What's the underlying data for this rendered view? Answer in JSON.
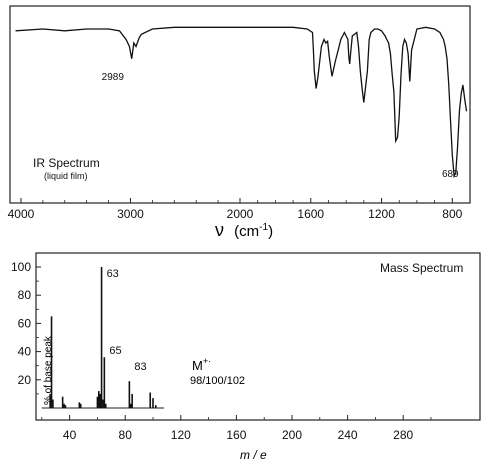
{
  "chart_data": [
    {
      "type": "line",
      "title": "IR Spectrum",
      "subtitle": "(liquid film)",
      "xlabel_symbol": "ν",
      "xlabel_unit": "(cm",
      "xlabel_exp": "-1",
      "xlabel_close": ")",
      "x_reversed": true,
      "xlim": [
        4100,
        700
      ],
      "ylim": [
        0,
        100
      ],
      "x_ticks": [
        4000,
        3000,
        2000,
        1600,
        1200,
        800
      ],
      "x_tick_labels": [
        "4000",
        "3000",
        "2000",
        "1600",
        "1200",
        "800"
      ],
      "series": [
        {
          "x": [
            4050,
            3800,
            3600,
            3400,
            3200,
            3100,
            3040,
            3010,
            2989,
            2970,
            2950,
            2920,
            2900,
            2800,
            2600,
            2400,
            2200,
            2000,
            1900,
            1800,
            1700,
            1620,
            1590,
            1585,
            1580,
            1570,
            1560,
            1540,
            1525,
            1515,
            1505,
            1495,
            1480,
            1460,
            1450,
            1440,
            1430,
            1410,
            1390,
            1385,
            1380,
            1375,
            1365,
            1340,
            1330,
            1320,
            1310,
            1300,
            1280,
            1270,
            1260,
            1240,
            1220,
            1200,
            1180,
            1170,
            1160,
            1150,
            1140,
            1130,
            1120,
            1110,
            1100,
            1090,
            1080,
            1070,
            1060,
            1050,
            1040,
            1030,
            1000,
            950,
            900,
            870,
            850,
            840,
            830,
            820,
            810,
            800,
            790,
            780,
            770,
            760,
            750,
            740,
            730,
            720
          ],
          "y": [
            91,
            92,
            91,
            92,
            92,
            91,
            86,
            82,
            75,
            84,
            82,
            87,
            89,
            92,
            93,
            93,
            93,
            93,
            93,
            93,
            93,
            92,
            90,
            80,
            68,
            58,
            64,
            82,
            86,
            84,
            85,
            76,
            65,
            74,
            78,
            82,
            86,
            90,
            86,
            76,
            72,
            78,
            88,
            90,
            82,
            68,
            58,
            50,
            68,
            86,
            90,
            92,
            92,
            91,
            88,
            86,
            84,
            78,
            66,
            56,
            28,
            30,
            42,
            66,
            82,
            86,
            84,
            78,
            62,
            80,
            92,
            93,
            92,
            90,
            86,
            82,
            75,
            60,
            40,
            20,
            8,
            10,
            25,
            45,
            55,
            60,
            52,
            45
          ]
        }
      ],
      "annotations": [
        {
          "x": 2989,
          "label": "2989"
        },
        {
          "x": 689,
          "label": "689"
        }
      ],
      "grid": false
    },
    {
      "type": "bar",
      "title": "Mass Spectrum",
      "xlabel": "m / e",
      "ylabel": "% of base peak",
      "xlim": [
        0,
        310
      ],
      "ylim": [
        0,
        105
      ],
      "x_ticks": [
        40,
        80,
        120,
        160,
        200,
        240,
        280
      ],
      "x_tick_labels": [
        "40",
        "80",
        "120",
        "160",
        "200",
        "240",
        "280"
      ],
      "y_ticks": [
        20,
        40,
        60,
        80,
        100
      ],
      "y_tick_labels": [
        "20",
        "40",
        "60",
        "80",
        "100"
      ],
      "peaks": [
        {
          "x": 26,
          "y": 10
        },
        {
          "x": 27,
          "y": 65
        },
        {
          "x": 28,
          "y": 6
        },
        {
          "x": 35,
          "y": 8
        },
        {
          "x": 36,
          "y": 3
        },
        {
          "x": 37,
          "y": 2
        },
        {
          "x": 47,
          "y": 4
        },
        {
          "x": 48,
          "y": 3
        },
        {
          "x": 60,
          "y": 8
        },
        {
          "x": 61,
          "y": 12
        },
        {
          "x": 62,
          "y": 10
        },
        {
          "x": 63,
          "y": 100
        },
        {
          "x": 64,
          "y": 6
        },
        {
          "x": 65,
          "y": 36
        },
        {
          "x": 66,
          "y": 3
        },
        {
          "x": 83,
          "y": 19
        },
        {
          "x": 84,
          "y": 3
        },
        {
          "x": 85,
          "y": 10
        },
        {
          "x": 98,
          "y": 11
        },
        {
          "x": 100,
          "y": 7
        },
        {
          "x": 102,
          "y": 2
        }
      ],
      "labels": [
        {
          "x": 63,
          "text": "63"
        },
        {
          "x": 65,
          "text": "65"
        },
        {
          "x": 83,
          "text": "83"
        }
      ],
      "molecular_ion": "M",
      "molecular_ion_sup": "+·",
      "molecular_ion_values": "98/100/102",
      "grid": false
    }
  ]
}
